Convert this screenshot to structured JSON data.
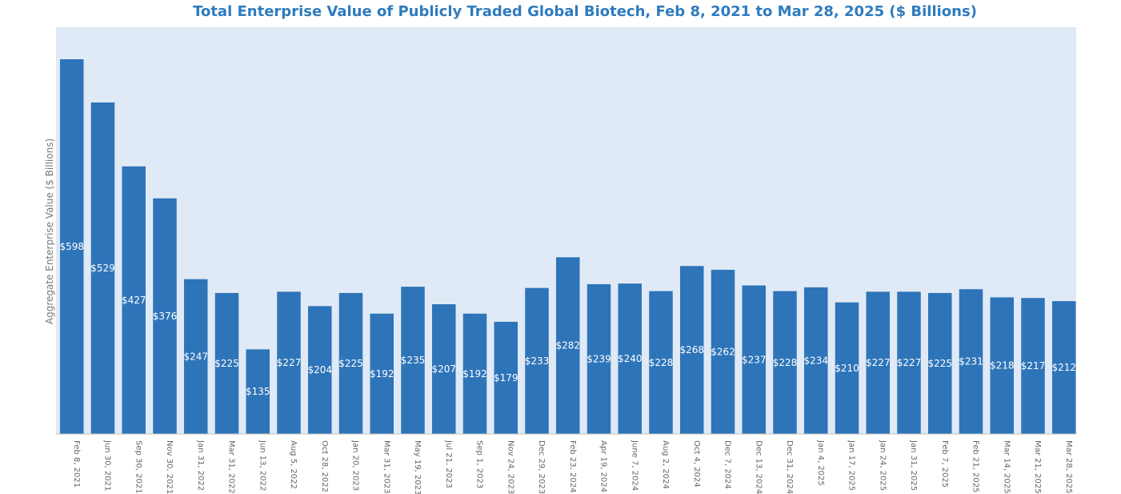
{
  "chart_data": {
    "type": "bar",
    "title": "Total Enterprise Value of Publicly Traded Global Biotech, Feb 8, 2021 to Mar 28, 2025 ($ Billions)",
    "xlabel": "",
    "ylabel": "Aggregate Enterprise Value ($ Billions)",
    "value_prefix": "$",
    "ylim": [
      0,
      650
    ],
    "grid": false,
    "legend": "none",
    "bar_color": "#2e74b8",
    "background_color": "#dfeaf6",
    "title_color": "#2e7bbd",
    "categories": [
      "Feb 8, 2021",
      "Jun 30, 2021",
      "Sep 30, 2021",
      "Nov 30, 2021",
      "Jan 31, 2022",
      "Mar 31, 2022",
      "Jun 13, 2022",
      "Aug 5, 2022",
      "Oct 28, 2022",
      "Jan 20, 2023",
      "Mar 31, 2023",
      "May 19, 2023",
      "Jul 21, 2023",
      "Sep 1, 2023",
      "Nov 24, 2023",
      "Dec 29, 2023",
      "Feb 23, 2024",
      "Apr 19, 2024",
      "June 7, 2024",
      "Aug 2, 2024",
      "Oct 4, 2024",
      "Dec 7, 2024",
      "Dec 13, 2024",
      "Dec 31, 2024",
      "Jan 4, 2025",
      "Jan 17, 2025",
      "Jan 24, 2025",
      "Jan 31, 2025",
      "Feb 7, 2025",
      "Feb 21, 2025",
      "Mar 14, 2025",
      "Mar 21, 2025",
      "Mar 28, 2025"
    ],
    "values": [
      598,
      529,
      427,
      376,
      247,
      225,
      135,
      227,
      204,
      225,
      192,
      235,
      207,
      192,
      179,
      233,
      282,
      239,
      240,
      228,
      268,
      262,
      237,
      228,
      234,
      210,
      227,
      227,
      225,
      231,
      218,
      217,
      212
    ]
  }
}
